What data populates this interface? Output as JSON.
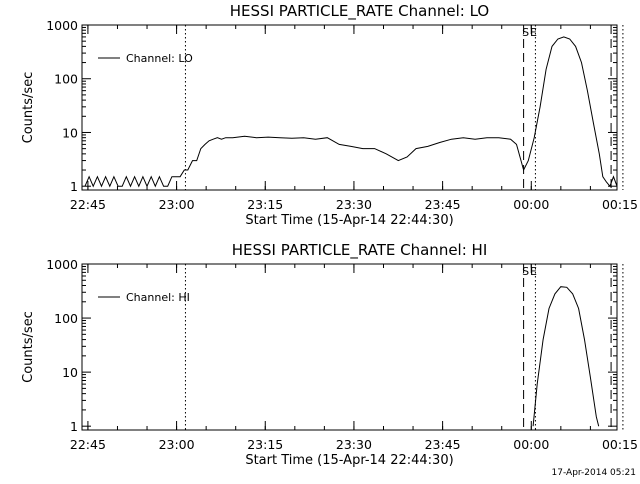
{
  "footer": {
    "timestamp": "17-Apr-2014 05:21"
  },
  "chart_data": [
    {
      "type": "line",
      "title": "HESSI PARTICLE_RATE Channel: LO",
      "xlabel": "Start Time (15-Apr-14 22:44:30)",
      "ylabel": "Counts/sec",
      "yscale": "log",
      "xlim": [
        -0.5,
        90
      ],
      "ylim": [
        0.85,
        1000
      ],
      "x_ticks": [
        {
          "x": 0.5,
          "label": "22:45"
        },
        {
          "x": 15.5,
          "label": "23:00"
        },
        {
          "x": 30.5,
          "label": "23:15"
        },
        {
          "x": 45.5,
          "label": "23:30"
        },
        {
          "x": 60.5,
          "label": "23:45"
        },
        {
          "x": 75.5,
          "label": "00:00"
        },
        {
          "x": 90.5,
          "label": "00:15"
        }
      ],
      "y_ticks": [
        {
          "y": 1,
          "label": "1"
        },
        {
          "y": 10,
          "label": "10"
        },
        {
          "y": 100,
          "label": "100"
        },
        {
          "y": 1000,
          "label": "1000"
        }
      ],
      "legend": {
        "label": "Channel: LO",
        "position": "top-left"
      },
      "markers": [
        {
          "x": 17.0,
          "style": "dotted",
          "label": ""
        },
        {
          "x": 74.2,
          "style": "dashed",
          "label": "S"
        },
        {
          "x": 76.2,
          "style": "dotted",
          "label": "E"
        },
        {
          "x": 89.0,
          "style": "dashed",
          "label": ""
        },
        {
          "x": 91.0,
          "style": "dotted",
          "label": ""
        }
      ],
      "series": [
        {
          "x": [
            0.0,
            0.7,
            1.4,
            2.1,
            2.8,
            3.5,
            4.2,
            4.9,
            5.6,
            6.3,
            7.0,
            7.7,
            8.4,
            9.1,
            9.8,
            10.5,
            11.2,
            11.9,
            12.6,
            13.3,
            14.0,
            14.7,
            15.4,
            16.1,
            16.8,
            17.4,
            18.2,
            18.9,
            19.6,
            20.3,
            21.0,
            21.7,
            22.4,
            23.1,
            23.8,
            25.0,
            27.0,
            29.0,
            31.0,
            33.0,
            35.0,
            37.0,
            39.0,
            41.0,
            43.0,
            45.0,
            47.0,
            49.0,
            51.0,
            53.0,
            54.5,
            56.0,
            58.0,
            60.0,
            62.0,
            64.0,
            66.0,
            68.0,
            70.0,
            72.0,
            73.0,
            73.6,
            74.2,
            75.0,
            76.0,
            77.0,
            78.0,
            79.0,
            80.0,
            81.0,
            82.0,
            83.0,
            84.0,
            85.0,
            86.0,
            87.0,
            87.6,
            88.2,
            88.8,
            89.4,
            90.0
          ],
          "y": [
            1,
            1.5,
            1,
            1.5,
            1,
            1.5,
            1,
            1.5,
            1,
            1,
            1.5,
            1,
            1.5,
            1,
            1.5,
            1,
            1.5,
            1,
            1.5,
            1,
            1,
            1.5,
            1.5,
            1.5,
            2,
            2,
            3,
            3,
            5,
            6,
            7,
            7.5,
            8,
            7.5,
            8,
            8,
            8.5,
            8,
            8.2,
            8,
            7.8,
            8,
            7.5,
            8,
            6,
            5.5,
            5,
            5,
            4,
            3,
            3.5,
            5,
            5.5,
            6.5,
            7.5,
            8,
            7.5,
            8,
            8,
            7.5,
            6,
            3.5,
            2,
            3,
            8,
            30,
            150,
            400,
            550,
            600,
            550,
            400,
            200,
            60,
            15,
            4,
            1.5,
            1.2,
            1,
            1.5,
            1
          ]
        }
      ]
    },
    {
      "type": "line",
      "title": "HESSI PARTICLE_RATE Channel: HI",
      "xlabel": "Start Time (15-Apr-14 22:44:30)",
      "ylabel": "Counts/sec",
      "yscale": "log",
      "xlim": [
        -0.5,
        90
      ],
      "ylim": [
        0.85,
        1000
      ],
      "x_ticks": [
        {
          "x": 0.5,
          "label": "22:45"
        },
        {
          "x": 15.5,
          "label": "23:00"
        },
        {
          "x": 30.5,
          "label": "23:15"
        },
        {
          "x": 45.5,
          "label": "23:30"
        },
        {
          "x": 60.5,
          "label": "23:45"
        },
        {
          "x": 75.5,
          "label": "00:00"
        },
        {
          "x": 90.5,
          "label": "00:15"
        }
      ],
      "y_ticks": [
        {
          "y": 1,
          "label": "1"
        },
        {
          "y": 10,
          "label": "10"
        },
        {
          "y": 100,
          "label": "100"
        },
        {
          "y": 1000,
          "label": "1000"
        }
      ],
      "legend": {
        "label": "Channel: HI",
        "position": "top-left"
      },
      "markers": [
        {
          "x": 17.0,
          "style": "dotted",
          "label": ""
        },
        {
          "x": 74.2,
          "style": "dashed",
          "label": "S"
        },
        {
          "x": 76.2,
          "style": "dotted",
          "label": "E"
        },
        {
          "x": 89.0,
          "style": "dashed",
          "label": ""
        },
        {
          "x": 91.0,
          "style": "dotted",
          "label": ""
        }
      ],
      "series": [
        {
          "x": [
            75.8,
            76.5,
            77.5,
            78.5,
            79.5,
            80.5,
            81.5,
            82.5,
            83.5,
            84.5,
            85.5,
            86.5,
            86.9
          ],
          "y": [
            1,
            6,
            40,
            150,
            280,
            380,
            370,
            280,
            150,
            40,
            8,
            1.5,
            1
          ]
        }
      ]
    }
  ]
}
